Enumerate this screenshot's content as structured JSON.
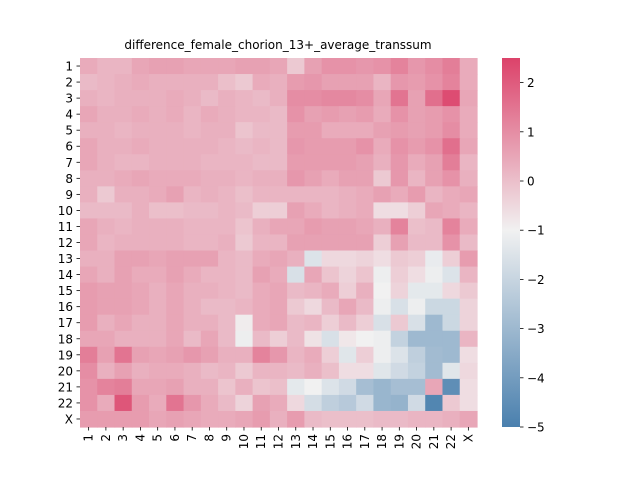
{
  "chart_data": {
    "type": "heatmap",
    "title": "difference_female_chorion_13+_average_transsum",
    "xlabel": "",
    "ylabel": "",
    "x_labels": [
      "1",
      "2",
      "3",
      "4",
      "5",
      "6",
      "7",
      "8",
      "9",
      "10",
      "11",
      "12",
      "13",
      "14",
      "15",
      "16",
      "17",
      "18",
      "19",
      "20",
      "21",
      "22",
      "X"
    ],
    "y_labels": [
      "1",
      "2",
      "3",
      "4",
      "5",
      "6",
      "7",
      "8",
      "9",
      "10",
      "11",
      "12",
      "13",
      "14",
      "15",
      "16",
      "17",
      "18",
      "19",
      "20",
      "21",
      "22",
      "X"
    ],
    "vmin": -5,
    "vmax": 2.5,
    "center": -1,
    "colorbar_ticks": [
      2,
      1,
      0,
      -1,
      -2,
      -3,
      -4,
      -5
    ],
    "colormap": {
      "low": "#4a80ae",
      "mid": "#f1f1f1",
      "high": "#dc426a"
    },
    "values": [
      [
        0.4,
        0.2,
        0.2,
        0.5,
        0.6,
        0.6,
        0.5,
        0.5,
        0.5,
        0.6,
        0.6,
        0.5,
        -0.2,
        0.6,
        0.9,
        0.9,
        0.8,
        0.9,
        1.2,
        0.8,
        1.0,
        1.3,
        0.4
      ],
      [
        0.1,
        0.2,
        0.3,
        0.4,
        0.3,
        0.3,
        0.3,
        0.3,
        0.0,
        -0.2,
        0.4,
        0.3,
        0.7,
        0.8,
        0.6,
        0.6,
        0.6,
        0.2,
        0.8,
        0.7,
        0.9,
        1.2,
        0.4
      ],
      [
        0.3,
        0.2,
        0.3,
        0.3,
        0.3,
        0.4,
        0.3,
        0.1,
        0.3,
        0.2,
        0.1,
        0.3,
        1.0,
        1.0,
        1.1,
        1.1,
        1.0,
        0.5,
        1.5,
        0.6,
        1.6,
        2.3,
        0.5
      ],
      [
        0.5,
        0.3,
        0.3,
        0.4,
        0.3,
        0.4,
        0.2,
        0.4,
        0.3,
        0.2,
        0.2,
        0.1,
        0.9,
        0.6,
        0.7,
        0.6,
        0.7,
        0.4,
        0.9,
        0.6,
        0.7,
        0.9,
        0.4
      ],
      [
        0.3,
        0.3,
        0.2,
        0.3,
        0.3,
        0.3,
        0.2,
        0.3,
        0.3,
        -0.1,
        0.1,
        0.1,
        0.7,
        0.7,
        0.4,
        0.4,
        0.4,
        0.6,
        0.7,
        0.6,
        0.7,
        1.0,
        0.4
      ],
      [
        0.5,
        0.3,
        0.3,
        0.4,
        0.3,
        0.3,
        0.3,
        0.3,
        0.2,
        0.1,
        0.2,
        0.1,
        0.8,
        0.7,
        0.7,
        0.7,
        0.9,
        0.4,
        0.9,
        0.7,
        0.9,
        1.6,
        0.5
      ],
      [
        0.5,
        0.3,
        0.2,
        0.2,
        0.3,
        0.3,
        0.3,
        0.2,
        0.2,
        0.2,
        0.1,
        0.1,
        0.7,
        0.7,
        0.7,
        0.7,
        0.6,
        0.3,
        0.8,
        0.4,
        0.6,
        1.3,
        0.2
      ],
      [
        0.3,
        0.3,
        0.4,
        0.5,
        0.4,
        0.4,
        0.4,
        0.3,
        0.3,
        0.2,
        0.3,
        0.3,
        0.8,
        0.6,
        0.4,
        0.6,
        0.6,
        -0.2,
        0.8,
        0.2,
        0.6,
        0.9,
        0.3
      ],
      [
        0.3,
        -0.2,
        0.3,
        0.3,
        0.4,
        0.6,
        0.2,
        0.3,
        0.2,
        0.0,
        0.2,
        0.2,
        0.2,
        0.2,
        0.2,
        0.3,
        0.4,
        0.6,
        0.4,
        0.7,
        0.2,
        0.4,
        0.5
      ],
      [
        0.1,
        0.1,
        0.1,
        0.3,
        0.0,
        0.0,
        0.1,
        0.1,
        0.2,
        0.1,
        -0.3,
        -0.3,
        0.6,
        0.4,
        0.2,
        0.3,
        0.4,
        -0.6,
        -0.6,
        -0.3,
        0.5,
        0.4,
        0.2
      ],
      [
        0.5,
        0.3,
        0.2,
        0.3,
        0.3,
        0.3,
        0.2,
        0.2,
        0.2,
        -0.1,
        0.3,
        0.5,
        0.5,
        0.7,
        0.6,
        0.6,
        0.5,
        0.3,
        1.2,
        0.0,
        0.1,
        1.2,
        0.4
      ],
      [
        0.5,
        0.2,
        0.3,
        0.3,
        0.3,
        0.3,
        0.2,
        0.2,
        0.3,
        -0.2,
        0.2,
        0.2,
        0.6,
        0.6,
        0.6,
        0.6,
        0.6,
        -0.3,
        0.6,
        0.1,
        0.1,
        0.9,
        0.1
      ],
      [
        0.3,
        0.3,
        0.6,
        0.6,
        0.5,
        0.6,
        0.6,
        0.6,
        0.2,
        0.1,
        0.4,
        0.5,
        0.3,
        -1.5,
        -0.5,
        -0.5,
        -0.4,
        -0.6,
        -0.2,
        -0.3,
        -1.2,
        -0.3,
        0.7
      ],
      [
        0.5,
        0.3,
        0.6,
        0.4,
        0.4,
        0.6,
        0.4,
        0.2,
        0.2,
        0.1,
        0.6,
        0.4,
        -1.6,
        0.5,
        -0.1,
        -0.4,
        -0.1,
        -1.1,
        -0.3,
        -0.6,
        -1.1,
        -1.5,
        0.2
      ],
      [
        0.7,
        0.6,
        0.6,
        0.5,
        0.3,
        0.5,
        0.3,
        0.3,
        0.2,
        0.1,
        0.4,
        0.5,
        0.1,
        0.2,
        0.4,
        -0.3,
        0.3,
        -1.0,
        -0.4,
        -1.3,
        -1.3,
        -0.5,
        -0.2
      ],
      [
        0.7,
        0.6,
        0.6,
        0.5,
        0.3,
        0.5,
        0.3,
        0.1,
        0.1,
        0.2,
        0.4,
        0.5,
        -0.2,
        -0.5,
        0.1,
        0.5,
        0.1,
        -1.1,
        -1.6,
        -1.1,
        -1.9,
        -1.9,
        -0.4
      ],
      [
        0.7,
        0.3,
        0.5,
        0.3,
        0.3,
        0.5,
        0.3,
        0.3,
        0.1,
        -0.9,
        0.4,
        0.5,
        0.1,
        0.2,
        -0.3,
        0.1,
        -0.3,
        -1.6,
        -0.2,
        -1.6,
        -3.0,
        -1.9,
        -0.4
      ],
      [
        0.5,
        0.5,
        0.3,
        0.3,
        0.3,
        0.5,
        0.1,
        0.5,
        0.1,
        -1.1,
        0.1,
        -0.3,
        0.1,
        -0.7,
        -1.6,
        -0.8,
        -1.0,
        -1.1,
        -2.1,
        -3.0,
        -3.0,
        -3.0,
        0.2
      ],
      [
        1.3,
        0.6,
        1.5,
        0.6,
        0.5,
        0.6,
        0.8,
        0.6,
        0.3,
        0.3,
        1.2,
        0.8,
        0.2,
        0.4,
        -0.3,
        -1.4,
        -0.3,
        -1.1,
        -1.5,
        -2.2,
        -2.9,
        -3.0,
        -0.6
      ],
      [
        1.0,
        0.3,
        0.6,
        0.3,
        0.4,
        0.4,
        0.3,
        0.1,
        0.2,
        -0.2,
        0.2,
        0.2,
        0.1,
        0.3,
        0.0,
        -0.6,
        -0.6,
        -1.4,
        -1.8,
        -2.1,
        -2.9,
        -1.4,
        -0.5
      ],
      [
        0.9,
        1.2,
        1.3,
        0.5,
        0.5,
        0.6,
        0.3,
        0.3,
        -0.1,
        0.3,
        -0.1,
        0.0,
        -1.3,
        -1.0,
        -1.5,
        -1.8,
        -2.8,
        -3.1,
        -2.8,
        -2.8,
        0.5,
        -4.5,
        -0.6
      ],
      [
        0.9,
        0.4,
        2.1,
        0.7,
        0.4,
        1.5,
        0.8,
        0.4,
        0.1,
        -0.4,
        0.6,
        0.4,
        -0.5,
        -1.7,
        -2.2,
        -2.4,
        -1.8,
        -3.1,
        -3.2,
        -1.8,
        -4.8,
        -0.2,
        -0.6
      ],
      [
        0.7,
        0.7,
        0.7,
        0.7,
        0.5,
        0.6,
        0.5,
        0.4,
        0.4,
        0.5,
        0.7,
        0.3,
        0.7,
        0.1,
        0.0,
        0.0,
        0.0,
        0.1,
        0.1,
        0.2,
        0.2,
        0.3,
        0.5
      ]
    ]
  }
}
